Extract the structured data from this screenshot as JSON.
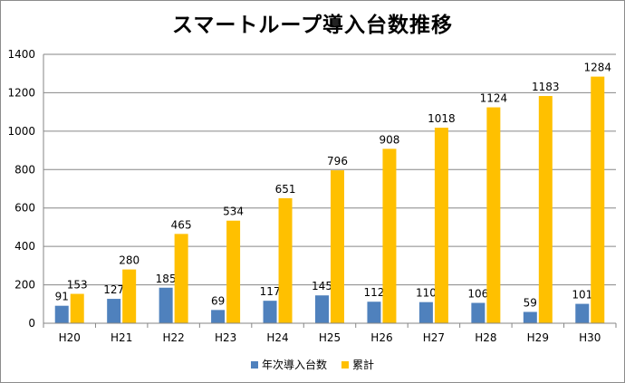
{
  "chart_data": {
    "type": "bar",
    "title": "スマートループ導入台数推移",
    "categories": [
      "H20",
      "H21",
      "H22",
      "H23",
      "H24",
      "H25",
      "H26",
      "H27",
      "H28",
      "H29",
      "H30"
    ],
    "series": [
      {
        "name": "年次導入台数",
        "color": "#4f81bd",
        "values": [
          91,
          127,
          185,
          69,
          117,
          145,
          112,
          110,
          106,
          59,
          101
        ]
      },
      {
        "name": "累計",
        "color": "#ffc000",
        "values": [
          153,
          280,
          465,
          534,
          651,
          796,
          908,
          1018,
          1124,
          1183,
          1284
        ]
      }
    ],
    "ylim": [
      0,
      1400
    ],
    "yticks": [
      0,
      200,
      400,
      600,
      800,
      1000,
      1200,
      1400
    ],
    "grid": true,
    "legend": "bottom",
    "xlabel": "",
    "ylabel": ""
  }
}
